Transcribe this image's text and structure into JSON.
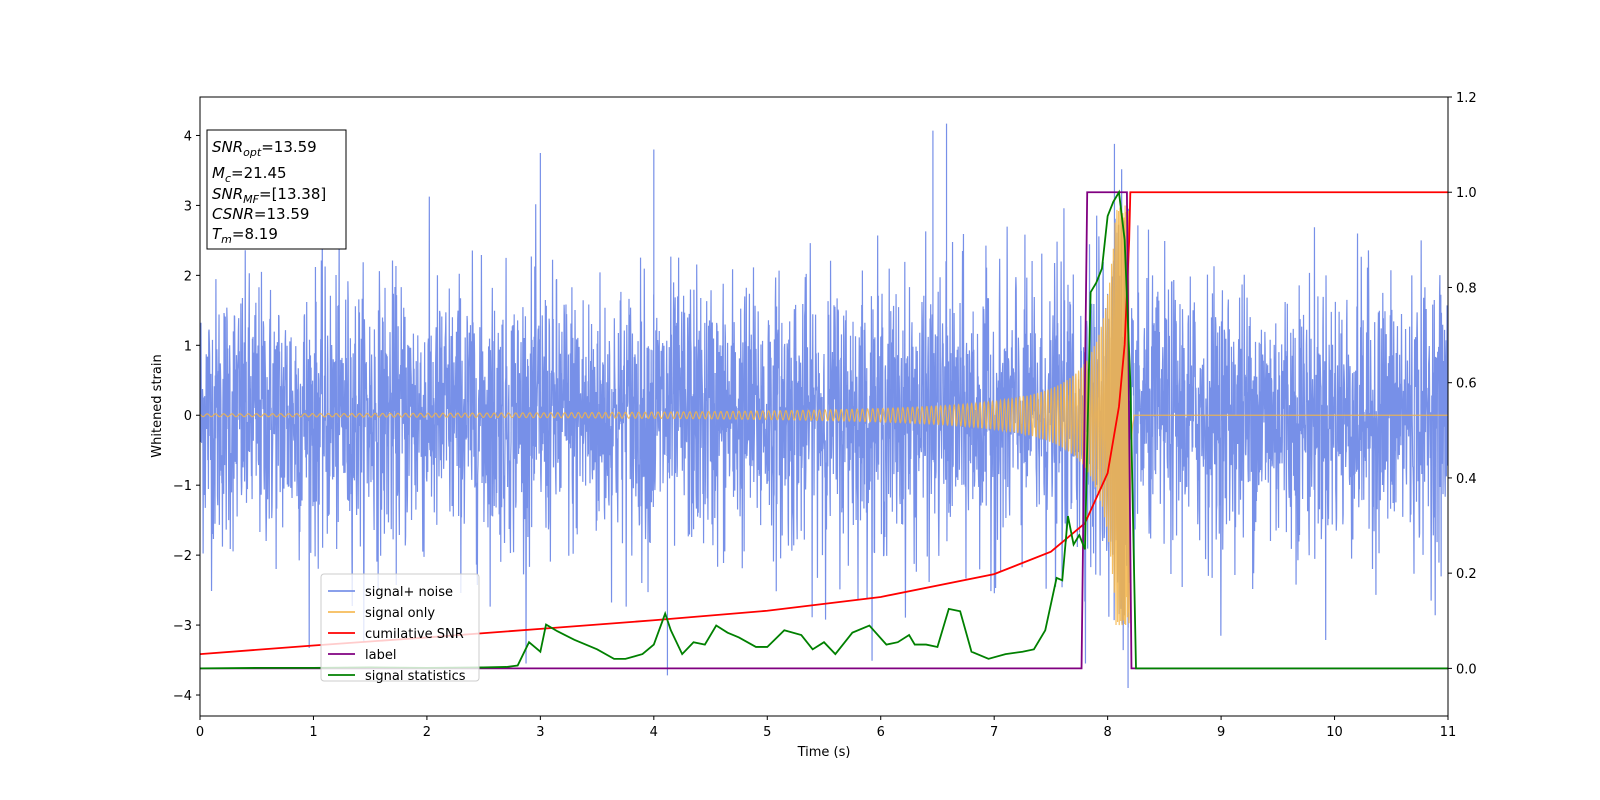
{
  "chart_data": {
    "type": "line",
    "xlabel": "Time (s)",
    "ylabel": "Whitened strain",
    "xlim": [
      0,
      11
    ],
    "ylim_left": [
      -4.3,
      4.55
    ],
    "ylim_right": [
      -0.1,
      1.2
    ],
    "x_ticks": [
      "0",
      "1",
      "2",
      "3",
      "4",
      "5",
      "6",
      "7",
      "8",
      "9",
      "10",
      "11"
    ],
    "y_left_ticks": [
      "−4",
      "−3",
      "−2",
      "−1",
      "0",
      "1",
      "2",
      "3",
      "4"
    ],
    "y_right_ticks": [
      "0.0",
      "0.2",
      "0.4",
      "0.6",
      "0.8",
      "1.0",
      "1.2"
    ],
    "grid": false,
    "legend_position": "lower-left",
    "series": [
      {
        "name": "signal+ noise",
        "axis": "left",
        "color": "#6b87e6",
        "noise_std": 1.0,
        "peak_values": [
          {
            "x": 6.58,
            "y": 4.17
          },
          {
            "x": 6.46,
            "y": 4.07
          },
          {
            "x": 8.06,
            "y": 3.88
          },
          {
            "x": 4.12,
            "y": -3.72
          },
          {
            "x": 8.18,
            "y": -3.9
          },
          {
            "x": 4.0,
            "y": 3.8
          },
          {
            "x": 3.0,
            "y": 3.75
          }
        ]
      },
      {
        "name": "signal only",
        "axis": "left",
        "color": "#f5b547",
        "merger_time": 8.19,
        "amplitude_start": 0.02,
        "amplitude_peak": 3.0
      },
      {
        "name": "cumilative SNR",
        "axis": "right",
        "color": "#ff0000",
        "x": [
          0,
          1,
          2,
          3,
          4,
          5,
          6,
          7,
          7.5,
          7.8,
          8.0,
          8.1,
          8.15,
          8.19,
          8.2,
          11
        ],
        "values": [
          0.03,
          0.048,
          0.065,
          0.083,
          0.101,
          0.121,
          0.15,
          0.198,
          0.245,
          0.305,
          0.41,
          0.55,
          0.68,
          0.9,
          1.0,
          1.0
        ]
      },
      {
        "name": "label",
        "axis": "right",
        "color": "#800080",
        "x": [
          0,
          7.77,
          7.82,
          8.17,
          8.21,
          11
        ],
        "values": [
          0,
          0,
          1,
          1,
          0,
          0
        ]
      },
      {
        "name": "signal statistics",
        "axis": "right",
        "color": "#008000",
        "x": [
          0,
          0.5,
          1,
          1.5,
          2,
          2.5,
          2.7,
          2.8,
          2.9,
          3.0,
          3.05,
          3.15,
          3.3,
          3.5,
          3.65,
          3.75,
          3.9,
          4.0,
          4.1,
          4.15,
          4.25,
          4.35,
          4.45,
          4.55,
          4.65,
          4.75,
          4.9,
          5.0,
          5.15,
          5.3,
          5.4,
          5.5,
          5.6,
          5.75,
          5.9,
          6.05,
          6.15,
          6.25,
          6.3,
          6.4,
          6.5,
          6.6,
          6.7,
          6.8,
          6.95,
          7.1,
          7.25,
          7.35,
          7.45,
          7.55,
          7.6,
          7.65,
          7.7,
          7.75,
          7.8,
          7.85,
          7.9,
          7.95,
          8.0,
          8.05,
          8.1,
          8.15,
          8.2,
          8.25,
          9,
          10,
          11
        ],
        "values": [
          0.0,
          0.001,
          0.001,
          0.002,
          0.001,
          0.002,
          0.003,
          0.006,
          0.055,
          0.035,
          0.092,
          0.078,
          0.06,
          0.04,
          0.02,
          0.02,
          0.03,
          0.05,
          0.115,
          0.08,
          0.03,
          0.055,
          0.05,
          0.09,
          0.075,
          0.065,
          0.045,
          0.045,
          0.08,
          0.07,
          0.04,
          0.055,
          0.03,
          0.075,
          0.09,
          0.05,
          0.055,
          0.07,
          0.05,
          0.05,
          0.045,
          0.125,
          0.12,
          0.035,
          0.02,
          0.03,
          0.035,
          0.04,
          0.08,
          0.19,
          0.185,
          0.32,
          0.26,
          0.28,
          0.25,
          0.79,
          0.81,
          0.84,
          0.95,
          0.98,
          1.0,
          0.9,
          0.6,
          0.0,
          0.0,
          0.0,
          0.0
        ]
      }
    ]
  },
  "info_box": {
    "snr_opt": {
      "base": "SNR",
      "sub": "opt",
      "value": "=13.59"
    },
    "mc": {
      "base": "M",
      "sub": "c",
      "value": "=21.45"
    },
    "snr_mf": {
      "base": "SNR",
      "sub": "MF",
      "value": "=[13.38]"
    },
    "csnr": {
      "base": "CSNR",
      "sub": "",
      "value": "=13.59"
    },
    "tm": {
      "base": "T",
      "sub": "m",
      "value": "=8.19"
    }
  }
}
